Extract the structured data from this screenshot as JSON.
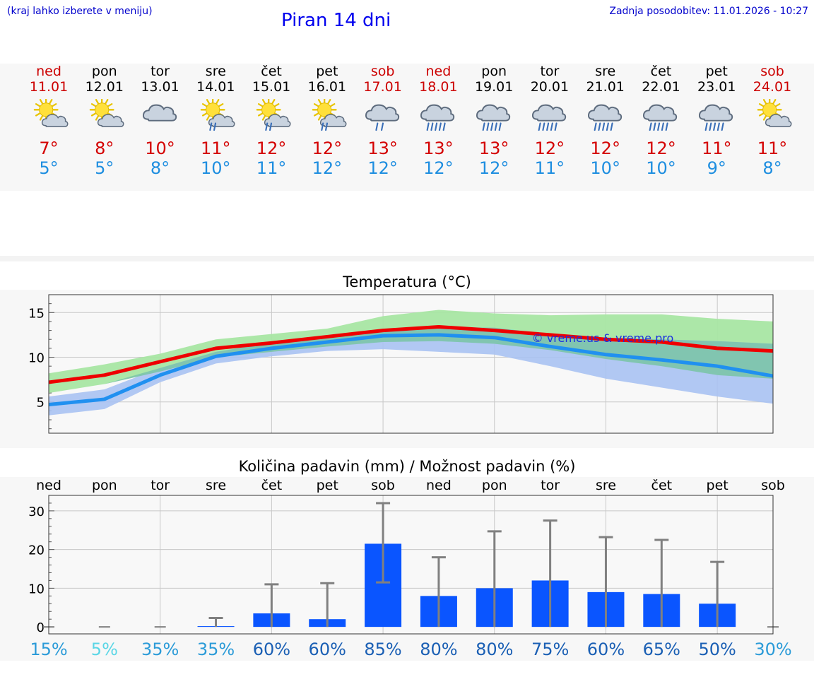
{
  "header": {
    "hint": "(kraj lahko izberete v meniju)",
    "title": "Piran 14 dni",
    "updated": "Zadnja posodobitev: 11.01.2026 - 10:27"
  },
  "days": [
    {
      "name": "ned",
      "date": "11.01",
      "weekend": true,
      "icon": "sun-cloud-icon",
      "tmax": "7°",
      "tmin": "5°"
    },
    {
      "name": "pon",
      "date": "12.01",
      "weekend": false,
      "icon": "sun-cloud-icon",
      "tmax": "8°",
      "tmin": "5°"
    },
    {
      "name": "tor",
      "date": "13.01",
      "weekend": false,
      "icon": "cloud-icon",
      "tmax": "10°",
      "tmin": "8°"
    },
    {
      "name": "sre",
      "date": "14.01",
      "weekend": false,
      "icon": "sun-cloud-rain-icon",
      "tmax": "11°",
      "tmin": "10°"
    },
    {
      "name": "čet",
      "date": "15.01",
      "weekend": false,
      "icon": "sun-cloud-rain-icon",
      "tmax": "12°",
      "tmin": "11°"
    },
    {
      "name": "pet",
      "date": "16.01",
      "weekend": false,
      "icon": "sun-cloud-rain-icon",
      "tmax": "12°",
      "tmin": "12°"
    },
    {
      "name": "sob",
      "date": "17.01",
      "weekend": true,
      "icon": "cloud-rain-icon",
      "tmax": "13°",
      "tmin": "12°"
    },
    {
      "name": "ned",
      "date": "18.01",
      "weekend": true,
      "icon": "cloud-heavy-rain-icon",
      "tmax": "13°",
      "tmin": "12°"
    },
    {
      "name": "pon",
      "date": "19.01",
      "weekend": false,
      "icon": "cloud-heavy-rain-icon",
      "tmax": "13°",
      "tmin": "12°"
    },
    {
      "name": "tor",
      "date": "20.01",
      "weekend": false,
      "icon": "cloud-heavy-rain-icon",
      "tmax": "12°",
      "tmin": "11°"
    },
    {
      "name": "sre",
      "date": "21.01",
      "weekend": false,
      "icon": "cloud-heavy-rain-icon",
      "tmax": "12°",
      "tmin": "10°"
    },
    {
      "name": "čet",
      "date": "22.01",
      "weekend": false,
      "icon": "cloud-heavy-rain-icon",
      "tmax": "12°",
      "tmin": "10°"
    },
    {
      "name": "pet",
      "date": "23.01",
      "weekend": false,
      "icon": "cloud-heavy-rain-icon",
      "tmax": "11°",
      "tmin": "9°"
    },
    {
      "name": "sob",
      "date": "24.01",
      "weekend": true,
      "icon": "sun-cloud-icon",
      "tmax": "11°",
      "tmin": "8°"
    }
  ],
  "colors": {
    "max_line": "#ee0000",
    "min_line": "#2090f0",
    "max_band": "#a8e6a3",
    "min_band": "#a9c2f2",
    "overlap_band": "#7cc4aa",
    "bar": "#0a55ff",
    "whisker": "#808080",
    "weekend_text": "#cc0000"
  },
  "chart_data": [
    {
      "type": "line",
      "title": "Temperatura (°C)",
      "watermark": "© vreme.us & vreme.pro",
      "ylim": [
        1.5,
        17
      ],
      "yticks": [
        5,
        10,
        15
      ],
      "x": [
        0,
        1,
        2,
        3,
        4,
        5,
        6,
        7,
        8,
        9,
        10,
        11,
        12,
        13
      ],
      "series": [
        {
          "name": "max",
          "values": [
            7.2,
            8.0,
            9.5,
            11.0,
            11.6,
            12.3,
            13.0,
            13.4,
            13.0,
            12.5,
            12.0,
            11.7,
            11.0,
            10.7
          ],
          "band_low": [
            6.0,
            7.0,
            8.4,
            10.0,
            10.6,
            11.2,
            11.7,
            11.8,
            11.5,
            10.8,
            9.8,
            9.0,
            8.0,
            7.6
          ],
          "band_high": [
            8.2,
            9.2,
            10.4,
            12.0,
            12.6,
            13.2,
            14.6,
            15.3,
            14.9,
            14.7,
            14.8,
            14.8,
            14.3,
            14.0
          ]
        },
        {
          "name": "min",
          "values": [
            4.7,
            5.3,
            8.0,
            10.1,
            11.0,
            11.7,
            12.4,
            12.5,
            12.2,
            11.2,
            10.3,
            9.7,
            9.0,
            7.9
          ],
          "band_low": [
            3.5,
            4.2,
            7.2,
            9.3,
            10.1,
            10.7,
            10.9,
            10.6,
            10.3,
            9.0,
            7.6,
            6.6,
            5.6,
            4.8
          ],
          "band_high": [
            5.6,
            6.4,
            8.8,
            10.6,
            11.6,
            12.2,
            13.0,
            13.4,
            13.3,
            12.6,
            12.2,
            12.0,
            11.8,
            11.5
          ]
        }
      ]
    },
    {
      "type": "bar",
      "title": "Količina padavin (mm) / Možnost padavin (%)",
      "categories": [
        "ned",
        "pon",
        "tor",
        "sre",
        "čet",
        "pet",
        "sob",
        "ned",
        "pon",
        "tor",
        "sre",
        "čet",
        "pet",
        "sob"
      ],
      "ylim": [
        -1.8,
        34
      ],
      "yticks": [
        0,
        10,
        20,
        30
      ],
      "values": [
        0,
        0,
        0,
        0.2,
        3.5,
        2.0,
        21.5,
        8.0,
        10.0,
        12.0,
        9.0,
        8.5,
        6.0,
        0
      ],
      "err_low": [
        0,
        0,
        0,
        0,
        0,
        0,
        11.5,
        0,
        0,
        0,
        0,
        0,
        0,
        0
      ],
      "err_high": [
        0,
        0,
        0,
        2.3,
        11.0,
        11.3,
        32.0,
        18.0,
        24.7,
        27.5,
        23.2,
        22.5,
        16.8,
        0
      ],
      "probability": [
        "15%",
        "5%",
        "35%",
        "35%",
        "60%",
        "60%",
        "85%",
        "80%",
        "80%",
        "75%",
        "60%",
        "65%",
        "50%",
        "30%"
      ],
      "probability_colors": [
        "#2b9bd8",
        "#5ad6e6",
        "#2b9bd8",
        "#2b9bd8",
        "#1a5fb4",
        "#1a5fb4",
        "#1a5fb4",
        "#1a5fb4",
        "#1a5fb4",
        "#1a5fb4",
        "#1a5fb4",
        "#1a5fb4",
        "#1a5fb4",
        "#2b9bd8"
      ]
    }
  ]
}
